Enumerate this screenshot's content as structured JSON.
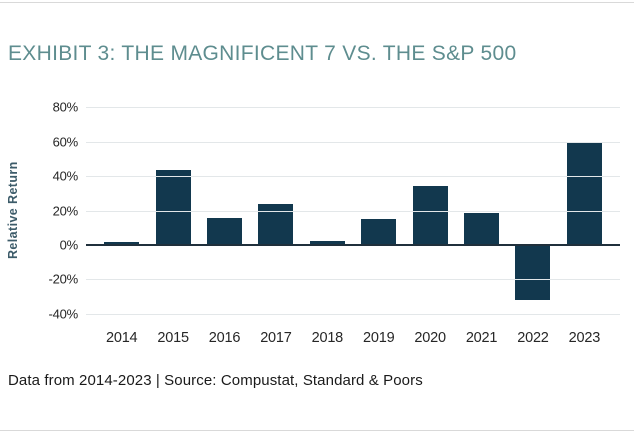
{
  "page": {
    "title": "EXHIBIT 3: THE MAGNIFICENT 7 VS. THE S&P 500",
    "source_note": "Data from 2014-2023 | Source: Compustat, Standard & Poors"
  },
  "colors": {
    "bar": "#12384E",
    "title_text": "#5E8D8F",
    "y_axis_title_text": "#3C5B69",
    "tick_text": "#262626",
    "gridline": "#E3E7E9",
    "zero_line": "#20303C",
    "divider": "#D9D9D9",
    "footer_text": "#1A1A1A",
    "background": "#FFFFFF"
  },
  "chart_data": {
    "type": "bar",
    "title": "EXHIBIT 3: THE MAGNIFICENT 7 VS. THE S&P 500",
    "categories": [
      "2014",
      "2015",
      "2016",
      "2017",
      "2018",
      "2019",
      "2020",
      "2021",
      "2022",
      "2023"
    ],
    "values": [
      1.5,
      43.5,
      15.5,
      24,
      2,
      15,
      34.5,
      18.5,
      -32,
      59.5
    ],
    "xlabel": "",
    "ylabel": "Relative Return",
    "ylim": [
      -46,
      86
    ],
    "yticks": [
      80,
      60,
      40,
      20,
      0,
      -20,
      -40
    ],
    "ytick_suffix": "%",
    "grid": true,
    "legend_position": "none"
  }
}
